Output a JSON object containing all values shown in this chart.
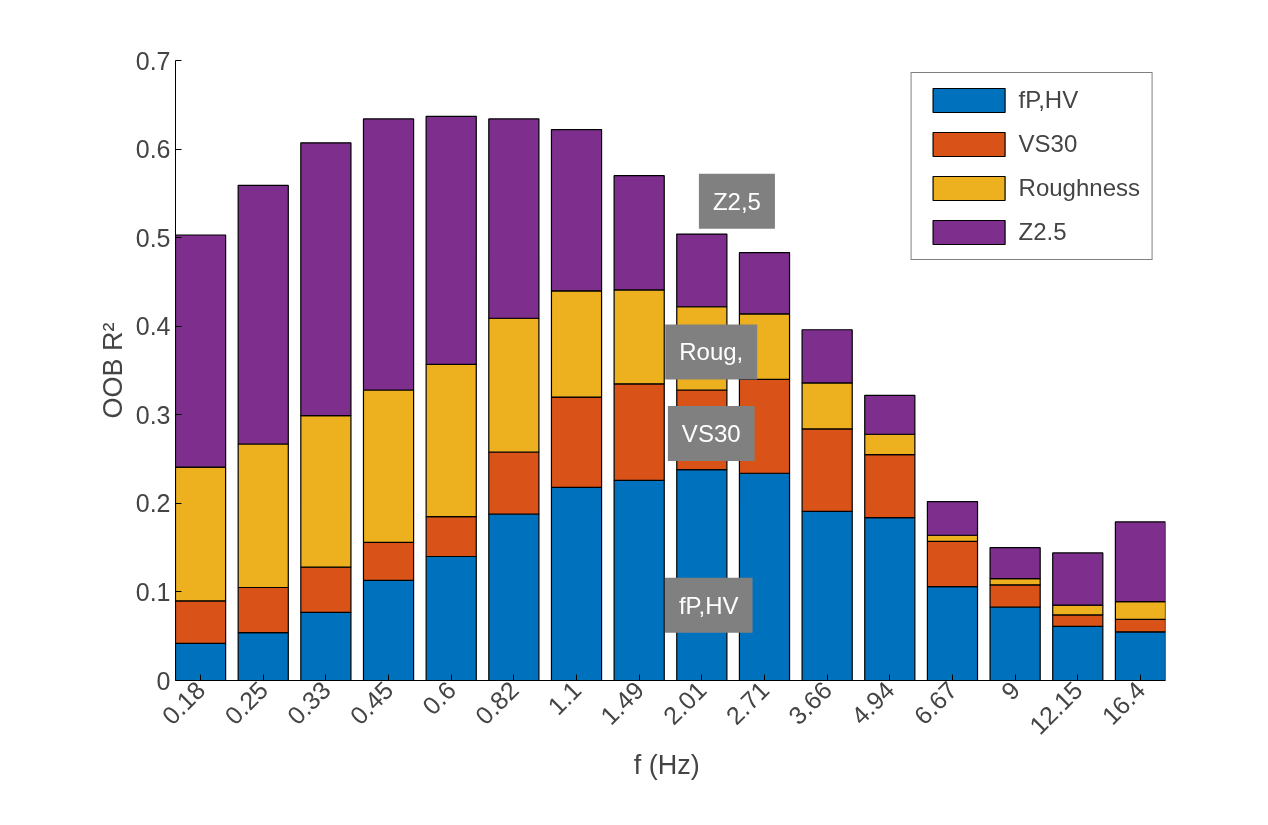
{
  "chart_data": {
    "type": "bar",
    "stacked": true,
    "xlabel": "f  (Hz)",
    "ylabel": "OOB R²",
    "categories": [
      "0.18",
      "0.25",
      "0.33",
      "0.45",
      "0.6",
      "0.82",
      "1.1",
      "1.49",
      "2.01",
      "2.71",
      "3.66",
      "4.94",
      "6.67",
      "9",
      "12.15",
      "16.4"
    ],
    "series": [
      {
        "name": "fP,HV",
        "color": "#0072bd",
        "values": [
          0.042,
          0.054,
          0.077,
          0.113,
          0.14,
          0.188,
          0.218,
          0.226,
          0.238,
          0.234,
          0.191,
          0.184,
          0.106,
          0.083,
          0.061,
          0.055
        ]
      },
      {
        "name": "VS30",
        "color": "#d95319",
        "values": [
          0.048,
          0.051,
          0.051,
          0.043,
          0.045,
          0.07,
          0.102,
          0.109,
          0.09,
          0.106,
          0.093,
          0.071,
          0.051,
          0.025,
          0.013,
          0.014
        ]
      },
      {
        "name": "Roughness",
        "color": "#edb120",
        "values": [
          0.151,
          0.162,
          0.171,
          0.172,
          0.172,
          0.151,
          0.12,
          0.106,
          0.094,
          0.074,
          0.052,
          0.023,
          0.007,
          0.007,
          0.011,
          0.02
        ]
      },
      {
        "name": "Z2.5",
        "color": "#7e2f8e",
        "values": [
          0.262,
          0.292,
          0.308,
          0.306,
          0.28,
          0.225,
          0.182,
          0.129,
          0.082,
          0.069,
          0.06,
          0.044,
          0.038,
          0.035,
          0.059,
          0.09
        ]
      }
    ],
    "ylim": [
      0,
      0.7
    ],
    "yticks": [
      0,
      0.1,
      0.2,
      0.3,
      0.4,
      0.5,
      0.6,
      0.7
    ],
    "grid": false,
    "legend": "top right",
    "annotations": [
      "Z2,5",
      "Roug,",
      "VS30",
      "fP,HV"
    ]
  }
}
